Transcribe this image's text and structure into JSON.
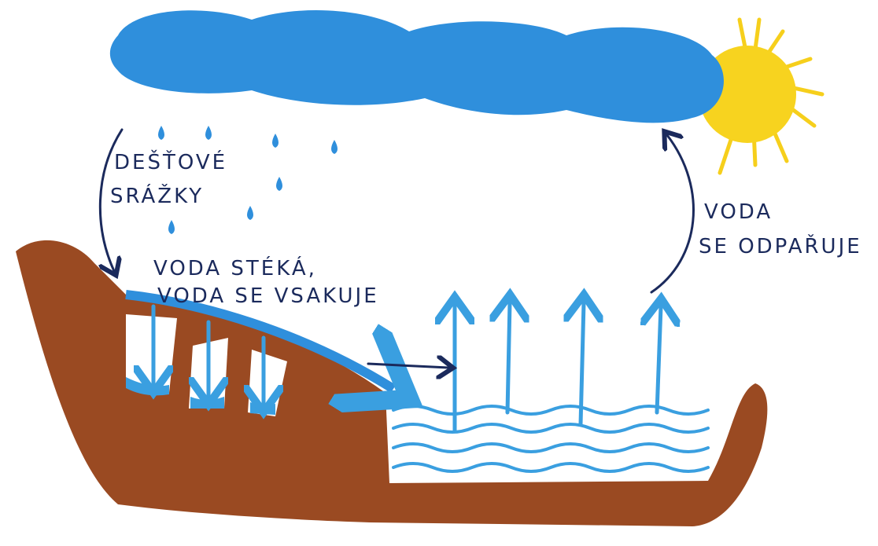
{
  "labels": [
    {
      "lines": [
        "DEŠŤOVÉ",
        "SRÁŽKY"
      ]
    },
    {
      "lines": [
        "VODA STÉKÁ,",
        "VODA SE VSAKUJE"
      ]
    },
    {
      "lines": [
        "VODA",
        "SE ODPAŘUJE"
      ]
    }
  ]
}
